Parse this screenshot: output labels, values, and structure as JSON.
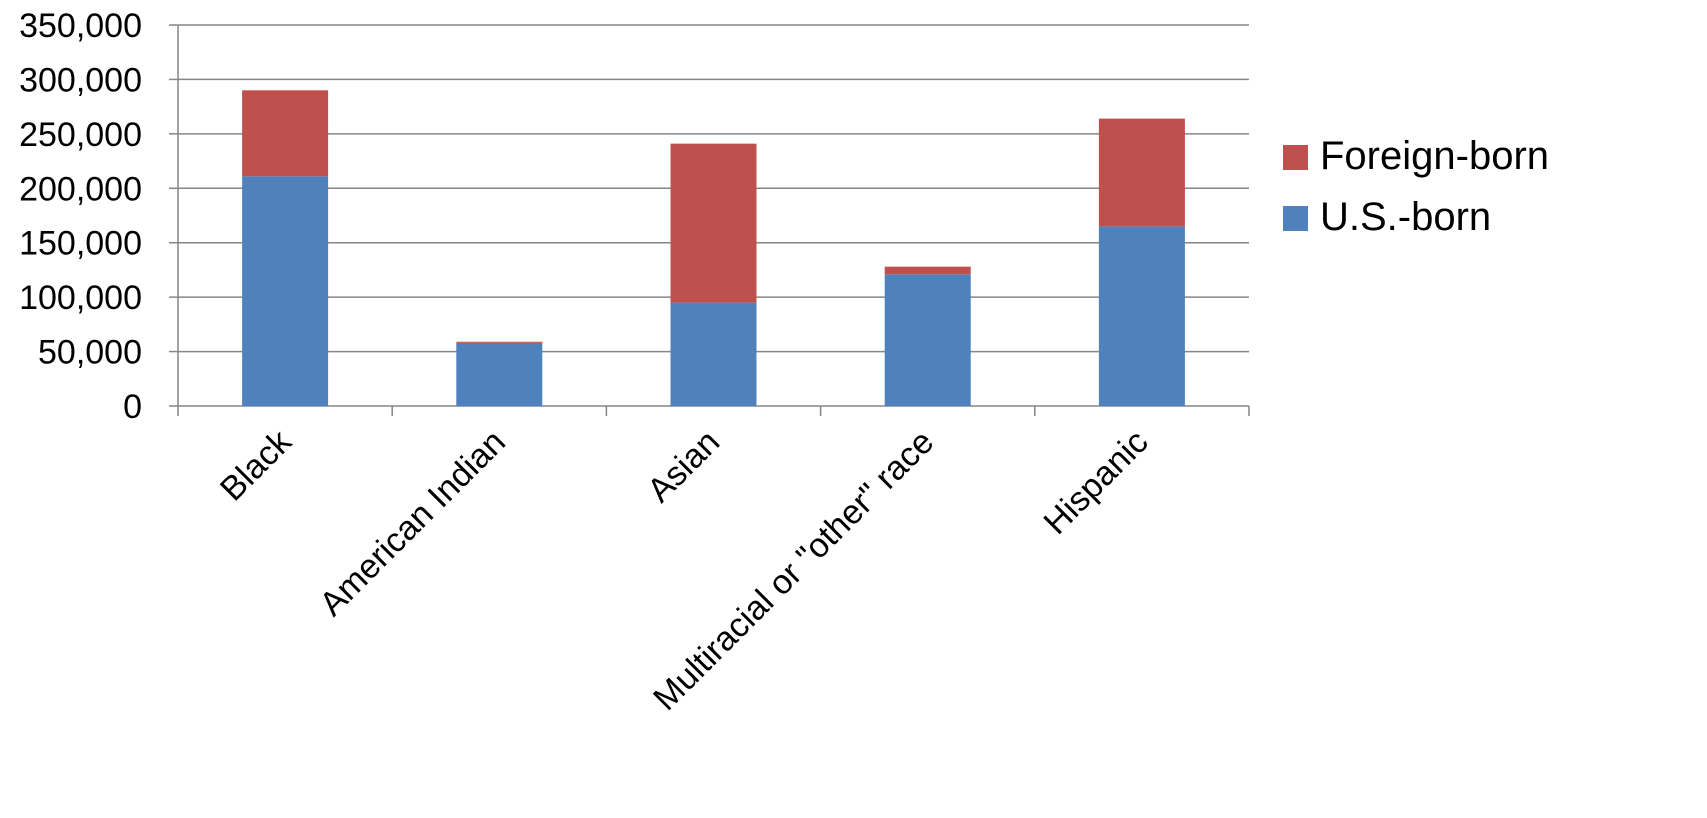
{
  "chart_data": {
    "type": "bar",
    "stacked": true,
    "title": "",
    "xlabel": "",
    "ylabel": "",
    "categories": [
      "Black",
      "American Indian",
      "Asian",
      "Multiracial or \"other\" race",
      "Hispanic"
    ],
    "series": [
      {
        "name": "U.S.-born",
        "color": "#4F81BD",
        "values": [
          211000,
          58000,
          95000,
          121000,
          165000
        ]
      },
      {
        "name": "Foreign-born",
        "color": "#C0504D",
        "values": [
          79000,
          1000,
          146000,
          7000,
          99000
        ]
      }
    ],
    "ylim": [
      0,
      350000
    ],
    "yticks": [
      0,
      50000,
      100000,
      150000,
      200000,
      250000,
      300000,
      350000
    ],
    "ytick_labels": [
      "0",
      "50,000",
      "100,000",
      "150,000",
      "200,000",
      "250,000",
      "300,000",
      "350,000"
    ],
    "grid": true,
    "legend": {
      "placement": "right",
      "entries": [
        "Foreign-born",
        "U.S.-born"
      ]
    }
  }
}
